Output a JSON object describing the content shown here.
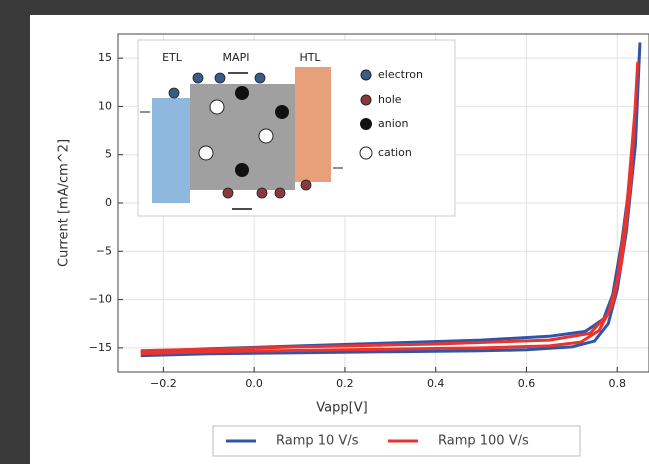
{
  "chart_data": {
    "type": "line",
    "xlabel": "Vapp[V]",
    "ylabel": "Current [mA/cm^2]",
    "xlim": [
      -0.3,
      0.87
    ],
    "ylim": [
      -17.5,
      17.5
    ],
    "xticks": [
      {
        "value": -0.2,
        "label": "−0.2"
      },
      {
        "value": 0,
        "label": "0.0"
      },
      {
        "value": 0.2,
        "label": "0.2"
      },
      {
        "value": 0.4,
        "label": "0.4"
      },
      {
        "value": 0.6,
        "label": "0.6"
      },
      {
        "value": 0.8,
        "label": "0.8"
      }
    ],
    "yticks": [
      {
        "value": -15,
        "label": "−15"
      },
      {
        "value": -10,
        "label": "−10"
      },
      {
        "value": -5,
        "label": "−5"
      },
      0,
      5,
      10,
      15
    ],
    "grid": true,
    "legend": "bottom",
    "series": [
      {
        "name": "Ramp 10 V/s",
        "color": "#2f55a8",
        "x": [
          -0.25,
          -0.1,
          0.1,
          0.3,
          0.5,
          0.6,
          0.7,
          0.75,
          0.78,
          0.8,
          0.82,
          0.84,
          0.85,
          0.845,
          0.83,
          0.81,
          0.79,
          0.77,
          0.73,
          0.65,
          0.5,
          0.3,
          0.1,
          -0.1,
          -0.25
        ],
        "values": [
          -15.8,
          -15.6,
          -15.5,
          -15.4,
          -15.3,
          -15.2,
          -14.9,
          -14.3,
          -12.5,
          -9,
          -3,
          6,
          16.5,
          12,
          3,
          -4,
          -9.5,
          -12,
          -13.3,
          -13.8,
          -14.2,
          -14.5,
          -14.8,
          -15.1,
          -15.4
        ]
      },
      {
        "name": "Ramp 100 V/s",
        "color": "#e8342f",
        "x": [
          -0.25,
          -0.1,
          0.2,
          0.5,
          0.65,
          0.72,
          0.76,
          0.79,
          0.81,
          0.83,
          0.845,
          0.84,
          0.82,
          0.8,
          0.78,
          0.74,
          0.65,
          0.4,
          0.1,
          -0.25
        ],
        "values": [
          -15.6,
          -15.4,
          -15.2,
          -15.0,
          -14.8,
          -14.4,
          -13.2,
          -10.5,
          -6,
          2,
          14.5,
          10,
          -1,
          -8,
          -11.5,
          -13.5,
          -14.2,
          -14.6,
          -14.9,
          -15.3
        ]
      }
    ],
    "inset": {
      "layers": [
        "ETL",
        "MAPI",
        "HTL"
      ],
      "legend": [
        "electron",
        "hole",
        "anion",
        "cation"
      ]
    }
  }
}
